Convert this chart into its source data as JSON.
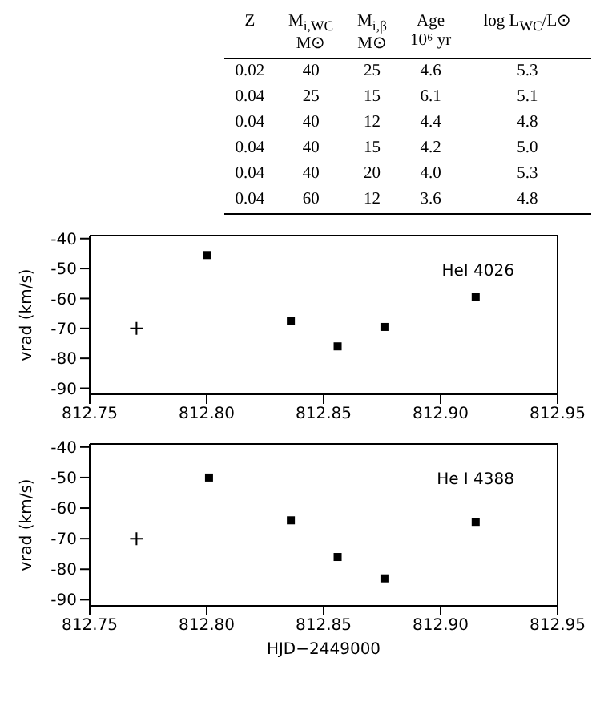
{
  "chart_data": [
    {
      "type": "other",
      "categories": [
        "Z",
        "M$_{i,WC}$\nM⊙",
        "M$_{i,β}$\nM⊙",
        "Age\n10⁶ yr",
        "log L$_{WC}$/L⊙"
      ],
      "cell_labels": [
        [
          "0.02",
          "40",
          "25",
          "4.6",
          "5.3"
        ],
        [
          "0.04",
          "25",
          "15",
          "6.1",
          "5.1"
        ],
        [
          "0.04",
          "40",
          "12",
          "4.4",
          "4.8"
        ],
        [
          "0.04",
          "40",
          "15",
          "4.2",
          "5.0"
        ],
        [
          "0.04",
          "40",
          "20",
          "4.0",
          "5.3"
        ],
        [
          "0.04",
          "60",
          "12",
          "3.6",
          "4.8"
        ]
      ]
    },
    {
      "type": "scatter",
      "ylabel": "vrad (km/s)",
      "annotations": [
        "HeI 4026"
      ],
      "series": [
        {
          "color": "#000000",
          "marker": "cross",
          "x": [
            812.77
          ],
          "values": [
            -70
          ]
        },
        {
          "color": "#000000",
          "marker": "square",
          "x": [
            812.8,
            812.836,
            812.856,
            812.876,
            812.915
          ],
          "values": [
            -45.5,
            -67.5,
            -76,
            -69.5,
            -59.5
          ]
        }
      ],
      "xlim": [
        812.75,
        812.95
      ],
      "xticks": [
        {
          "value": 812.75,
          "label": "812.75"
        },
        {
          "value": 812.8,
          "label": "812.80"
        },
        {
          "value": 812.85,
          "label": "812.85"
        },
        {
          "value": 812.9,
          "label": "812.90"
        },
        {
          "value": 812.95,
          "label": "812.95"
        }
      ],
      "ylim": [
        -92,
        -39
      ],
      "yticks": [
        -90,
        -80,
        -70,
        -60,
        -50,
        -40
      ]
    },
    {
      "type": "scatter",
      "ylabel": "vrad (km/s)",
      "xlabel": "HJD−2449000",
      "annotations": [
        "He I 4388"
      ],
      "series": [
        {
          "color": "#000000",
          "marker": "cross",
          "x": [
            812.77
          ],
          "values": [
            -70
          ]
        },
        {
          "color": "#000000",
          "marker": "square",
          "x": [
            812.801,
            812.836,
            812.856,
            812.876,
            812.915
          ],
          "values": [
            -50,
            -64,
            -76,
            -83,
            -64.5
          ]
        }
      ],
      "xlim": [
        812.75,
        812.95
      ],
      "xticks": [
        {
          "value": 812.75,
          "label": "812.75"
        },
        {
          "value": 812.8,
          "label": "812.80"
        },
        {
          "value": 812.85,
          "label": "812.85"
        },
        {
          "value": 812.9,
          "label": "812.90"
        },
        {
          "value": 812.95,
          "label": "812.95"
        }
      ],
      "ylim": [
        -92,
        -39
      ],
      "yticks": [
        -90,
        -80,
        -70,
        -60,
        -50,
        -40
      ]
    }
  ]
}
